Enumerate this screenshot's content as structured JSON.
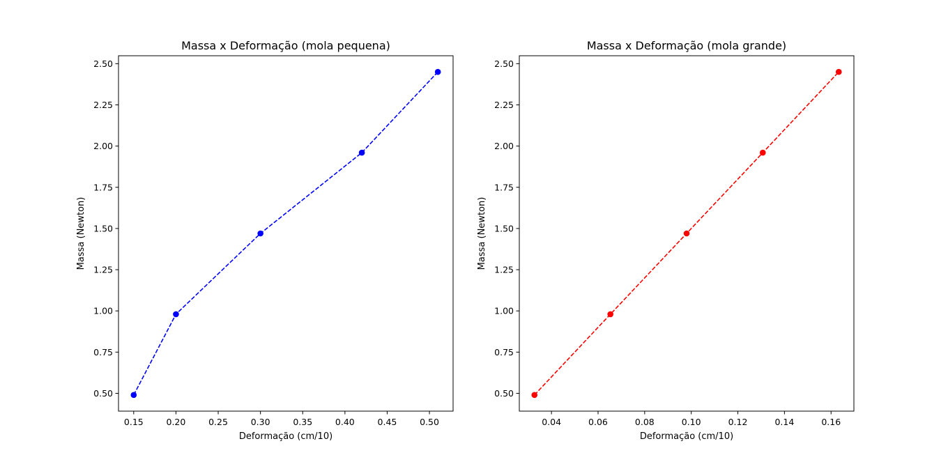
{
  "chart_data": [
    {
      "type": "line",
      "title": "Massa x Deformação (mola pequena)",
      "xlabel": "Deformação (cm/10)",
      "ylabel": "Massa (Newton)",
      "x": [
        0.15,
        0.2,
        0.3,
        0.42,
        0.51
      ],
      "series": [
        {
          "values": [
            0.49,
            0.98,
            1.47,
            1.96,
            2.45
          ],
          "color": "#0000ff",
          "line_style": "dashed",
          "marker": "circle"
        }
      ],
      "xlim": [
        0.132,
        0.528
      ],
      "ylim": [
        0.392,
        2.548
      ],
      "xticks": [
        0.15,
        0.2,
        0.25,
        0.3,
        0.35,
        0.4,
        0.45,
        0.5
      ],
      "xtick_labels": [
        "0.15",
        "0.20",
        "0.25",
        "0.30",
        "0.35",
        "0.40",
        "0.45",
        "0.50"
      ],
      "yticks": [
        0.5,
        0.75,
        1.0,
        1.25,
        1.5,
        1.75,
        2.0,
        2.25,
        2.5
      ],
      "ytick_labels": [
        "0.50",
        "0.75",
        "1.00",
        "1.25",
        "1.50",
        "1.75",
        "2.00",
        "2.25",
        "2.50"
      ],
      "grid": false
    },
    {
      "type": "line",
      "title": "Massa x Deformação (mola grande)",
      "xlabel": "Deformação (cm/10)",
      "ylabel": "Massa (Newton)",
      "x": [
        0.0327,
        0.0653,
        0.098,
        0.1307,
        0.1633
      ],
      "series": [
        {
          "values": [
            0.49,
            0.98,
            1.47,
            1.96,
            2.45
          ],
          "color": "#ff0000",
          "line_style": "dashed",
          "marker": "circle"
        }
      ],
      "xlim": [
        0.0262,
        0.1698
      ],
      "ylim": [
        0.392,
        2.548
      ],
      "xticks": [
        0.04,
        0.06,
        0.08,
        0.1,
        0.12,
        0.14,
        0.16
      ],
      "xtick_labels": [
        "0.04",
        "0.06",
        "0.08",
        "0.10",
        "0.12",
        "0.14",
        "0.16"
      ],
      "yticks": [
        0.5,
        0.75,
        1.0,
        1.25,
        1.5,
        1.75,
        2.0,
        2.25,
        2.5
      ],
      "ytick_labels": [
        "0.50",
        "0.75",
        "1.00",
        "1.25",
        "1.50",
        "1.75",
        "2.00",
        "2.25",
        "2.50"
      ],
      "grid": false
    }
  ]
}
